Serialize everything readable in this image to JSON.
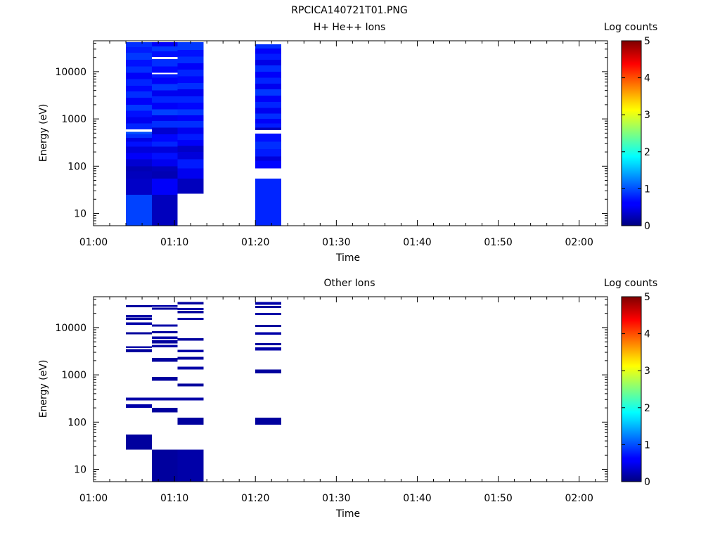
{
  "figure_title": "RPCICA140721T01.PNG",
  "chart_data": [
    {
      "type": "heatmap",
      "title": "H+ He++ Ions",
      "xlabel": "Time",
      "ylabel": "Energy (eV)",
      "x_ticks": [
        "01:00",
        "01:10",
        "01:20",
        "01:30",
        "01:40",
        "01:50",
        "02:00"
      ],
      "x_tick_minutes": [
        0,
        10,
        20,
        30,
        40,
        50,
        60
      ],
      "xlim_minutes": [
        0,
        63.5
      ],
      "y_scale": "log",
      "ylim": [
        5.5,
        45000
      ],
      "y_ticks": [
        "10",
        "100",
        "1000",
        "10000"
      ],
      "y_tick_values": [
        10,
        100,
        1000,
        10000
      ],
      "colorbar": {
        "label": "Log counts",
        "range": [
          0,
          5
        ],
        "ticks": [
          "0",
          "1",
          "2",
          "3",
          "4",
          "5"
        ]
      },
      "columns": [
        {
          "t_start": 4.0,
          "t_end": 7.2,
          "cells": [
            [
              5.5,
              25,
              0.95
            ],
            [
              25,
              55,
              0.35
            ],
            [
              55,
              78,
              0.3
            ],
            [
              78,
              100,
              0.25
            ],
            [
              100,
              140,
              0.4
            ],
            [
              140,
              190,
              0.6
            ],
            [
              190,
              260,
              0.45
            ],
            [
              260,
              330,
              0.7
            ],
            [
              330,
              400,
              0.5
            ],
            [
              400,
              470,
              0.85
            ],
            [
              470,
              530,
              1.0
            ],
            [
              600,
              800,
              0.8
            ],
            [
              800,
              1100,
              0.55
            ],
            [
              1100,
              1500,
              0.7
            ],
            [
              1500,
              2000,
              0.9
            ],
            [
              2000,
              2800,
              0.6
            ],
            [
              2800,
              3800,
              0.85
            ],
            [
              3800,
              5000,
              0.65
            ],
            [
              5000,
              7000,
              0.8
            ],
            [
              7000,
              9500,
              0.6
            ],
            [
              9500,
              13000,
              0.85
            ],
            [
              13000,
              18000,
              0.7
            ],
            [
              18000,
              25000,
              0.9
            ],
            [
              25000,
              33000,
              0.75
            ],
            [
              33000,
              42000,
              0.85
            ]
          ]
        },
        {
          "t_start": 7.2,
          "t_end": 10.4,
          "cells": [
            [
              5.5,
              25,
              0.3
            ],
            [
              25,
              55,
              0.6
            ],
            [
              55,
              78,
              0.25
            ],
            [
              78,
              100,
              0.3
            ],
            [
              100,
              140,
              0.55
            ],
            [
              140,
              190,
              0.7
            ],
            [
              190,
              260,
              0.45
            ],
            [
              260,
              330,
              0.8
            ],
            [
              330,
              470,
              0.65
            ],
            [
              470,
              650,
              0.4
            ],
            [
              650,
              900,
              0.85
            ],
            [
              900,
              1200,
              0.55
            ],
            [
              1200,
              1600,
              0.95
            ],
            [
              1600,
              2200,
              0.6
            ],
            [
              2200,
              3000,
              0.8
            ],
            [
              3000,
              4000,
              0.55
            ],
            [
              4000,
              5500,
              0.9
            ],
            [
              5500,
              7500,
              0.6
            ],
            [
              7500,
              8800,
              0.75
            ],
            [
              9500,
              13000,
              0.65
            ],
            [
              13000,
              18500,
              0.85
            ],
            [
              20500,
              27000,
              0.7
            ],
            [
              27000,
              34000,
              0.9
            ],
            [
              34000,
              42000,
              0.6
            ]
          ]
        },
        {
          "t_start": 10.4,
          "t_end": 13.6,
          "cells": [
            [
              26,
              55,
              0.3
            ],
            [
              55,
              90,
              0.55
            ],
            [
              90,
              140,
              0.75
            ],
            [
              140,
              200,
              0.45
            ],
            [
              200,
              270,
              0.35
            ],
            [
              270,
              360,
              0.6
            ],
            [
              360,
              480,
              0.75
            ],
            [
              480,
              650,
              0.55
            ],
            [
              650,
              900,
              0.85
            ],
            [
              900,
              1200,
              0.6
            ],
            [
              1200,
              1600,
              0.9
            ],
            [
              1600,
              2200,
              0.65
            ],
            [
              2200,
              3000,
              0.8
            ],
            [
              3000,
              4200,
              0.55
            ],
            [
              4200,
              5800,
              0.85
            ],
            [
              5800,
              8000,
              0.65
            ],
            [
              8000,
              11000,
              0.8
            ],
            [
              11000,
              15000,
              0.6
            ],
            [
              15000,
              21000,
              0.85
            ],
            [
              21000,
              29000,
              0.7
            ],
            [
              29000,
              42000,
              0.9
            ]
          ]
        },
        {
          "t_start": 20.0,
          "t_end": 23.2,
          "cells": [
            [
              5.5,
              55,
              0.8
            ],
            [
              90,
              130,
              0.65
            ],
            [
              130,
              160,
              0.45
            ],
            [
              160,
              230,
              0.75
            ],
            [
              230,
              330,
              0.85
            ],
            [
              330,
              490,
              0.7
            ],
            [
              580,
              650,
              0.3
            ],
            [
              650,
              800,
              0.75
            ],
            [
              800,
              1000,
              0.6
            ],
            [
              1000,
              1300,
              0.85
            ],
            [
              1300,
              1700,
              0.55
            ],
            [
              1700,
              2300,
              0.8
            ],
            [
              2300,
              3100,
              0.6
            ],
            [
              3100,
              4200,
              0.9
            ],
            [
              4200,
              5600,
              0.55
            ],
            [
              5600,
              7500,
              0.8
            ],
            [
              7500,
              10000,
              0.6
            ],
            [
              10000,
              13500,
              0.85
            ],
            [
              13500,
              18000,
              0.5
            ],
            [
              18000,
              24000,
              0.75
            ],
            [
              24000,
              31000,
              0.6
            ],
            [
              31000,
              38000,
              0.85
            ]
          ]
        }
      ]
    },
    {
      "type": "heatmap",
      "title": "Other Ions",
      "xlabel": "Time",
      "ylabel": "Energy (eV)",
      "x_ticks": [
        "01:00",
        "01:10",
        "01:20",
        "01:30",
        "01:40",
        "01:50",
        "02:00"
      ],
      "x_tick_minutes": [
        0,
        10,
        20,
        30,
        40,
        50,
        60
      ],
      "xlim_minutes": [
        0,
        63.5
      ],
      "y_scale": "log",
      "ylim": [
        5.5,
        45000
      ],
      "y_ticks": [
        "10",
        "100",
        "1000",
        "10000"
      ],
      "y_tick_values": [
        10,
        100,
        1000,
        10000
      ],
      "colorbar": {
        "label": "Log counts",
        "range": [
          0,
          5
        ],
        "ticks": [
          "0",
          "1",
          "2",
          "3",
          "4",
          "5"
        ]
      },
      "columns": [
        {
          "t_start": 4.0,
          "t_end": 7.2,
          "cells": [
            [
              26,
              55,
              0.15
            ],
            [
              200,
              240,
              0.2
            ],
            [
              290,
              330,
              0.2
            ],
            [
              3000,
              3500,
              0.15
            ],
            [
              3700,
              4000,
              0.2
            ],
            [
              7200,
              8000,
              0.15
            ],
            [
              11500,
              13000,
              0.2
            ],
            [
              14500,
              16000,
              0.15
            ],
            [
              16500,
              18500,
              0.2
            ],
            [
              27000,
              30000,
              0.15
            ]
          ]
        },
        {
          "t_start": 7.2,
          "t_end": 10.4,
          "cells": [
            [
              5.5,
              26,
              0.15
            ],
            [
              160,
              200,
              0.15
            ],
            [
              290,
              330,
              0.2
            ],
            [
              750,
              900,
              0.15
            ],
            [
              1900,
              2300,
              0.15
            ],
            [
              3800,
              4300,
              0.2
            ],
            [
              4600,
              5500,
              0.15
            ],
            [
              5800,
              6500,
              0.2
            ],
            [
              7600,
              8400,
              0.15
            ],
            [
              10500,
              11600,
              0.2
            ],
            [
              24000,
              26500,
              0.15
            ],
            [
              27500,
              30000,
              0.2
            ]
          ]
        },
        {
          "t_start": 10.4,
          "t_end": 13.6,
          "cells": [
            [
              5.5,
              26,
              0.2
            ],
            [
              88,
              125,
              0.15
            ],
            [
              290,
              330,
              0.2
            ],
            [
              570,
              650,
              0.15
            ],
            [
              1300,
              1500,
              0.2
            ],
            [
              2100,
              2400,
              0.15
            ],
            [
              3000,
              3400,
              0.2
            ],
            [
              5300,
              6000,
              0.15
            ],
            [
              14500,
              16000,
              0.2
            ],
            [
              20000,
              22500,
              0.15
            ],
            [
              23500,
              26000,
              0.2
            ],
            [
              31000,
              35000,
              0.15
            ]
          ]
        },
        {
          "t_start": 20.0,
          "t_end": 23.2,
          "cells": [
            [
              88,
              125,
              0.15
            ],
            [
              1080,
              1300,
              0.15
            ],
            [
              3300,
              3800,
              0.2
            ],
            [
              4200,
              4700,
              0.15
            ],
            [
              7100,
              8000,
              0.2
            ],
            [
              10300,
              11500,
              0.15
            ],
            [
              18500,
              20500,
              0.2
            ],
            [
              26000,
              29000,
              0.15
            ],
            [
              30500,
              35000,
              0.2
            ]
          ]
        }
      ]
    }
  ]
}
